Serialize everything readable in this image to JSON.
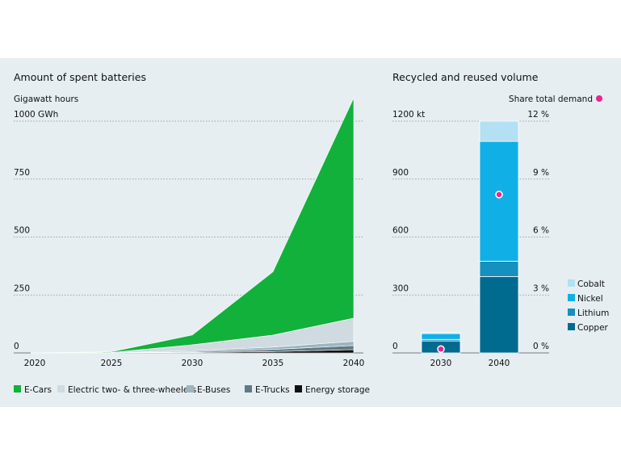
{
  "chart_data": [
    {
      "type": "area",
      "title": "Amount of spent batteries",
      "ylabel": "Gigawatt hours",
      "unit_label": "1000 GWh",
      "x": [
        2020,
        2025,
        2030,
        2035,
        2040
      ],
      "x_ticks": [
        "2020",
        "2025",
        "2030",
        "2035",
        "2040"
      ],
      "y_ticks": [
        "1000 GWh",
        "750",
        "500",
        "250",
        "0"
      ],
      "ylim": [
        0,
        1000
      ],
      "stacked": true,
      "grid": true,
      "legend_position": "bottom",
      "series": [
        {
          "name": "Energy storage",
          "color": "#111111",
          "values": [
            0,
            0,
            2,
            6,
            14
          ]
        },
        {
          "name": "E-Trucks",
          "color": "#5f7a86",
          "values": [
            0,
            0,
            3,
            9,
            18
          ]
        },
        {
          "name": "E-Buses",
          "color": "#9eb4bf",
          "values": [
            0,
            0,
            5,
            10,
            18
          ]
        },
        {
          "name": "Electric two- & three-wheelers",
          "color": "#cfdbe1",
          "values": [
            0,
            2,
            25,
            52,
            100
          ]
        },
        {
          "name": "E-Cars",
          "color": "#12b13b",
          "values": [
            0,
            3,
            42,
            273,
            950
          ]
        }
      ]
    },
    {
      "type": "bar",
      "title": "Recycled and reused volume",
      "categories": [
        "2030",
        "2040"
      ],
      "unit_label": "1200 kt",
      "y_ticks": [
        "1200 kt",
        "900",
        "600",
        "300",
        "0"
      ],
      "ylim": [
        0,
        1200
      ],
      "secondary_y_ticks": [
        "12 %",
        "9 %",
        "6 %",
        "3 %",
        "0 %"
      ],
      "secondary_ylim": [
        0,
        12
      ],
      "stacked": true,
      "legend_position": "right",
      "series": [
        {
          "name": "Copper",
          "color": "#006b8f",
          "values": [
            62,
            395
          ]
        },
        {
          "name": "Lithium",
          "color": "#1690bd",
          "values": [
            8,
            80
          ]
        },
        {
          "name": "Nickel",
          "color": "#10b0e6",
          "values": [
            30,
            620
          ]
        },
        {
          "name": "Cobalt",
          "color": "#b3e0f2",
          "values": [
            5,
            105
          ]
        }
      ],
      "share_total_demand": {
        "label": "Share total demand",
        "color": "#e8258f",
        "values": [
          0.2,
          8.2
        ]
      }
    }
  ]
}
